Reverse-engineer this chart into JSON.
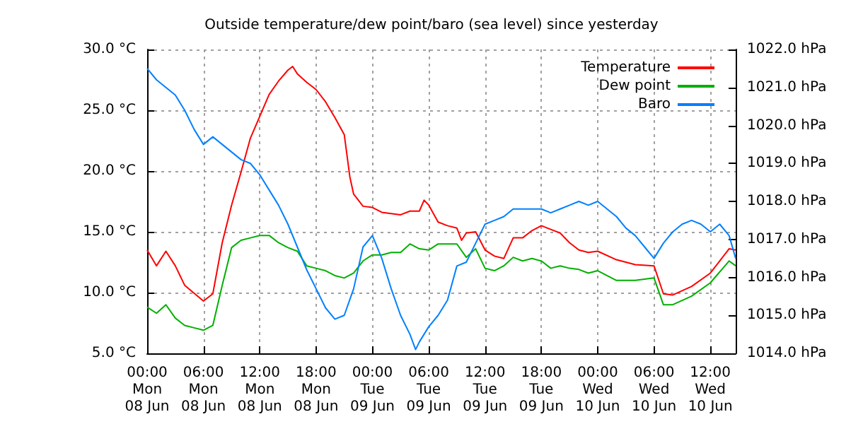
{
  "chart_data": {
    "type": "line",
    "title": "Outside temperature/dew point/baro (sea level) since yesterday",
    "xlim": [
      "--06-08T00:00",
      "--06-10T14:42"
    ],
    "xticks": [
      {
        "value": "--06-08T00:00",
        "label": "00:00\nMon\n08 Jun"
      },
      {
        "value": "--06-08T06:00",
        "label": "06:00\nMon\n08 Jun"
      },
      {
        "value": "--06-08T12:00",
        "label": "12:00\nMon\n08 Jun"
      },
      {
        "value": "--06-08T18:00",
        "label": "18:00\nMon\n08 Jun"
      },
      {
        "value": "--06-09T00:00",
        "label": "00:00\nTue\n09 Jun"
      },
      {
        "value": "--06-09T06:00",
        "label": "06:00\nTue\n09 Jun"
      },
      {
        "value": "--06-09T12:00",
        "label": "12:00\nTue\n09 Jun"
      },
      {
        "value": "--06-09T18:00",
        "label": "18:00\nTue\n09 Jun"
      },
      {
        "value": "--06-10T00:00",
        "label": "00:00\nWed\n10 Jun"
      },
      {
        "value": "--06-10T06:00",
        "label": "06:00\nWed\n10 Jun"
      },
      {
        "value": "--06-10T12:00",
        "label": "12:00\nWed\n10 Jun"
      }
    ],
    "ylim": [
      5,
      30
    ],
    "yticks": [
      {
        "value": 5,
        "label": "5.0 °C"
      },
      {
        "value": 10,
        "label": "10.0 °C"
      },
      {
        "value": 15,
        "label": "15.0 °C"
      },
      {
        "value": 20,
        "label": "20.0 °C"
      },
      {
        "value": 25,
        "label": "25.0 °C"
      },
      {
        "value": 30,
        "label": "30.0 °C"
      }
    ],
    "y2lim": [
      1014,
      1022
    ],
    "y2ticks": [
      {
        "value": 1014,
        "label": "1014.0 hPa"
      },
      {
        "value": 1015,
        "label": "1015.0 hPa"
      },
      {
        "value": 1016,
        "label": "1016.0 hPa"
      },
      {
        "value": 1017,
        "label": "1017.0 hPa"
      },
      {
        "value": 1018,
        "label": "1018.0 hPa"
      },
      {
        "value": 1019,
        "label": "1019.0 hPa"
      },
      {
        "value": 1020,
        "label": "1020.0 hPa"
      },
      {
        "value": 1021,
        "label": "1021.0 hPa"
      },
      {
        "value": 1022,
        "label": "1022.0 hPa"
      }
    ],
    "grid": true,
    "legend": "top right",
    "marker": "none",
    "line_style": "solid",
    "series": [
      {
        "name": "Temperature",
        "color": "#ff0000",
        "x": [
          "--06-08T00:00",
          "--06-08T01:00",
          "--06-08T02:00",
          "--06-08T03:00",
          "--06-08T04:00",
          "--06-08T06:00",
          "--06-08T07:00",
          "--06-08T08:00",
          "--06-08T09:00",
          "--06-08T10:00",
          "--06-08T11:00",
          "--06-08T12:00",
          "--06-08T13:00",
          "--06-08T14:00",
          "--06-08T15:00",
          "--06-08T15:30",
          "--06-08T16:00",
          "--06-08T17:00",
          "--06-08T18:00",
          "--06-08T19:00",
          "--06-08T20:00",
          "--06-08T21:00",
          "--06-08T21:36",
          "--06-08T22:00",
          "--06-08T23:00",
          "--06-09T00:00",
          "--06-09T01:00",
          "--06-09T02:00",
          "--06-09T03:00",
          "--06-09T04:00",
          "--06-09T05:00",
          "--06-09T05:30",
          "--06-09T06:00",
          "--06-09T07:00",
          "--06-09T08:00",
          "--06-09T09:00",
          "--06-09T09:30",
          "--06-09T10:00",
          "--06-09T11:00",
          "--06-09T12:00",
          "--06-09T13:00",
          "--06-09T14:00",
          "--06-09T15:00",
          "--06-09T16:00",
          "--06-09T17:00",
          "--06-09T18:00",
          "--06-09T19:00",
          "--06-09T20:00",
          "--06-09T21:00",
          "--06-09T22:00",
          "--06-09T23:00",
          "--06-10T00:00",
          "--06-10T02:00",
          "--06-10T04:00",
          "--06-10T06:00",
          "--06-10T07:00",
          "--06-10T08:00",
          "--06-10T10:00",
          "--06-10T12:00",
          "--06-10T14:00",
          "--06-10T14:42"
        ],
        "values": [
          13.5,
          12.2,
          13.4,
          12.2,
          10.6,
          9.3,
          9.9,
          14.1,
          17.2,
          19.9,
          22.7,
          24.5,
          26.3,
          27.4,
          28.3,
          28.6,
          28.0,
          27.3,
          26.7,
          25.7,
          24.4,
          23.0,
          19.5,
          18.1,
          17.1,
          17.0,
          16.6,
          16.5,
          16.4,
          16.7,
          16.7,
          17.6,
          17.2,
          15.8,
          15.5,
          15.3,
          14.3,
          14.9,
          15.0,
          13.5,
          13.0,
          12.8,
          14.5,
          14.5,
          15.1,
          15.5,
          15.2,
          14.9,
          14.1,
          13.5,
          13.3,
          13.4,
          12.7,
          12.3,
          12.2,
          9.9,
          9.8,
          10.5,
          11.6,
          13.6,
          13.5
        ]
      },
      {
        "name": "Dew point",
        "color": "#00b000",
        "x": [
          "--06-08T00:00",
          "--06-08T01:00",
          "--06-08T02:00",
          "--06-08T03:00",
          "--06-08T04:00",
          "--06-08T05:00",
          "--06-08T06:00",
          "--06-08T07:00",
          "--06-08T08:00",
          "--06-08T09:00",
          "--06-08T10:00",
          "--06-08T11:00",
          "--06-08T12:00",
          "--06-08T13:00",
          "--06-08T14:00",
          "--06-08T15:00",
          "--06-08T16:00",
          "--06-08T17:00",
          "--06-08T18:00",
          "--06-08T19:00",
          "--06-08T20:00",
          "--06-08T21:00",
          "--06-08T22:00",
          "--06-08T23:00",
          "--06-09T00:00",
          "--06-09T01:00",
          "--06-09T02:00",
          "--06-09T03:00",
          "--06-09T04:00",
          "--06-09T05:00",
          "--06-09T06:00",
          "--06-09T07:00",
          "--06-09T08:00",
          "--06-09T09:00",
          "--06-09T10:00",
          "--06-09T11:00",
          "--06-09T12:00",
          "--06-09T13:00",
          "--06-09T14:00",
          "--06-09T15:00",
          "--06-09T16:00",
          "--06-09T17:00",
          "--06-09T18:00",
          "--06-09T19:00",
          "--06-09T20:00",
          "--06-09T21:00",
          "--06-09T22:00",
          "--06-09T23:00",
          "--06-10T00:00",
          "--06-10T02:00",
          "--06-10T04:00",
          "--06-10T06:00",
          "--06-10T07:00",
          "--06-10T08:00",
          "--06-10T10:00",
          "--06-10T12:00",
          "--06-10T14:00",
          "--06-10T14:42"
        ],
        "values": [
          8.8,
          8.3,
          9.0,
          7.9,
          7.3,
          7.1,
          6.9,
          7.3,
          10.6,
          13.7,
          14.3,
          14.5,
          14.7,
          14.7,
          14.1,
          13.7,
          13.4,
          12.2,
          12.0,
          11.8,
          11.4,
          11.2,
          11.6,
          12.6,
          13.1,
          13.1,
          13.3,
          13.3,
          14.0,
          13.6,
          13.5,
          14.0,
          14.0,
          14.0,
          12.9,
          13.6,
          12.0,
          11.8,
          12.2,
          12.9,
          12.6,
          12.8,
          12.6,
          12.0,
          12.2,
          12.0,
          11.9,
          11.6,
          11.8,
          11.0,
          11.0,
          11.2,
          9.0,
          9.0,
          9.7,
          10.8,
          12.6,
          12.2
        ]
      },
      {
        "name": "Baro",
        "color": "#0080ff",
        "axis": "y2",
        "x": [
          "--06-08T00:00",
          "--06-08T01:00",
          "--06-08T02:00",
          "--06-08T03:00",
          "--06-08T04:00",
          "--06-08T05:00",
          "--06-08T06:00",
          "--06-08T07:00",
          "--06-08T08:00",
          "--06-08T09:00",
          "--06-08T10:00",
          "--06-08T11:00",
          "--06-08T12:00",
          "--06-08T13:00",
          "--06-08T14:00",
          "--06-08T15:00",
          "--06-08T16:00",
          "--06-08T17:00",
          "--06-08T18:00",
          "--06-08T19:00",
          "--06-08T20:00",
          "--06-08T21:00",
          "--06-08T22:00",
          "--06-08T23:00",
          "--06-09T00:00",
          "--06-09T01:00",
          "--06-09T02:00",
          "--06-09T03:00",
          "--06-09T04:00",
          "--06-09T04:36",
          "--06-09T05:00",
          "--06-09T06:00",
          "--06-09T07:00",
          "--06-09T08:00",
          "--06-09T09:00",
          "--06-09T10:00",
          "--06-09T11:00",
          "--06-09T12:00",
          "--06-09T13:00",
          "--06-09T14:00",
          "--06-09T15:00",
          "--06-09T16:00",
          "--06-09T17:00",
          "--06-09T18:00",
          "--06-09T19:00",
          "--06-09T20:00",
          "--06-09T21:00",
          "--06-09T22:00",
          "--06-09T23:00",
          "--06-10T00:00",
          "--06-10T01:00",
          "--06-10T02:00",
          "--06-10T03:00",
          "--06-10T04:00",
          "--06-10T05:00",
          "--06-10T06:00",
          "--06-10T07:00",
          "--06-10T08:00",
          "--06-10T09:00",
          "--06-10T10:00",
          "--06-10T11:00",
          "--06-10T12:00",
          "--06-10T13:00",
          "--06-10T14:00",
          "--06-10T14:42"
        ],
        "values": [
          1021.5,
          1021.2,
          1021.0,
          1020.8,
          1020.4,
          1019.9,
          1019.5,
          1019.7,
          1019.5,
          1019.3,
          1019.1,
          1019.0,
          1018.7,
          1018.3,
          1017.9,
          1017.4,
          1016.8,
          1016.2,
          1015.7,
          1015.2,
          1014.9,
          1015.0,
          1015.7,
          1016.8,
          1017.1,
          1016.5,
          1015.7,
          1015.0,
          1014.5,
          1014.1,
          1014.3,
          1014.7,
          1015.0,
          1015.4,
          1016.3,
          1016.4,
          1016.9,
          1017.4,
          1017.5,
          1017.6,
          1017.8,
          1017.8,
          1017.8,
          1017.8,
          1017.7,
          1017.8,
          1017.9,
          1018.0,
          1017.9,
          1018.0,
          1017.8,
          1017.6,
          1017.3,
          1017.1,
          1016.8,
          1016.5,
          1016.9,
          1017.2,
          1017.4,
          1017.5,
          1017.4,
          1017.2,
          1017.4,
          1017.1,
          1016.5
        ]
      }
    ]
  }
}
